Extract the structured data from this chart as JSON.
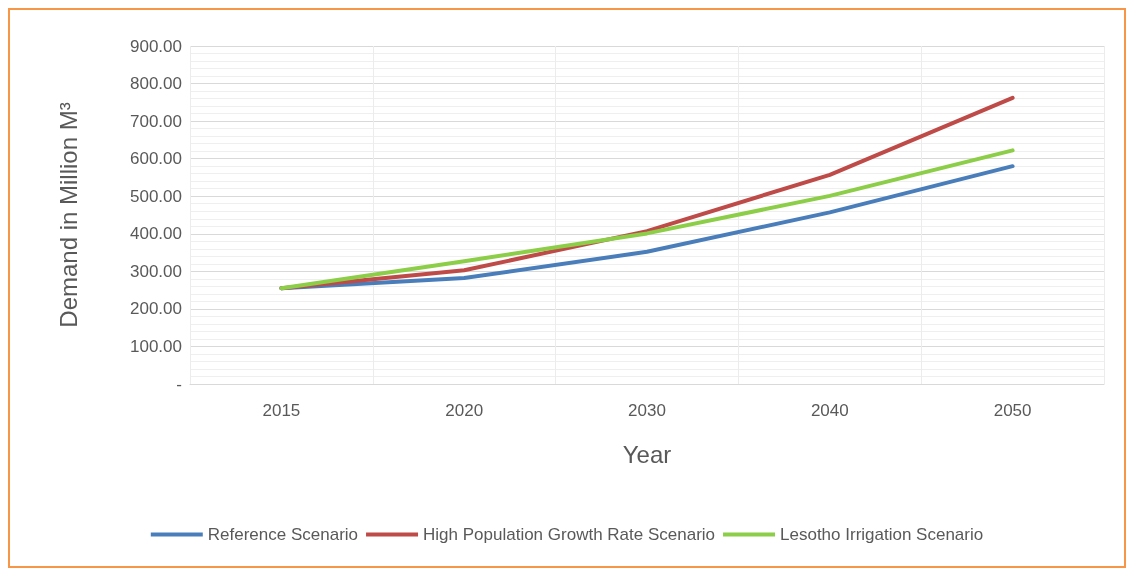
{
  "chart_data": {
    "type": "line",
    "xlabel": "Year",
    "ylabel": "Demand in Million M³",
    "categories": [
      "2015",
      "2020",
      "2030",
      "2040",
      "2050"
    ],
    "series": [
      {
        "name": "Reference Scenario",
        "color": "#4a7ebb",
        "values": [
          255,
          282,
          352,
          457,
          580
        ]
      },
      {
        "name": "High Population Growth Rate Scenario",
        "color": "#be4b48",
        "values": [
          255,
          303,
          407,
          557,
          762
        ]
      },
      {
        "name": "Lesotho Irrigation Scenario",
        "color": "#8cce47",
        "values": [
          255,
          327,
          401,
          501,
          622
        ]
      }
    ],
    "ylim": [
      0,
      900
    ],
    "yticks": [
      {
        "value": 0,
        "label": "-"
      },
      {
        "value": 100,
        "label": "100.00"
      },
      {
        "value": 200,
        "label": "200.00"
      },
      {
        "value": 300,
        "label": "300.00"
      },
      {
        "value": 400,
        "label": "400.00"
      },
      {
        "value": 500,
        "label": "500.00"
      },
      {
        "value": 600,
        "label": "600.00"
      },
      {
        "value": 700,
        "label": "700.00"
      },
      {
        "value": 800,
        "label": "800.00"
      },
      {
        "value": 900,
        "label": "900.00"
      }
    ],
    "grid": true,
    "legend": "bottom",
    "marker": "none",
    "line_style": "solid"
  }
}
